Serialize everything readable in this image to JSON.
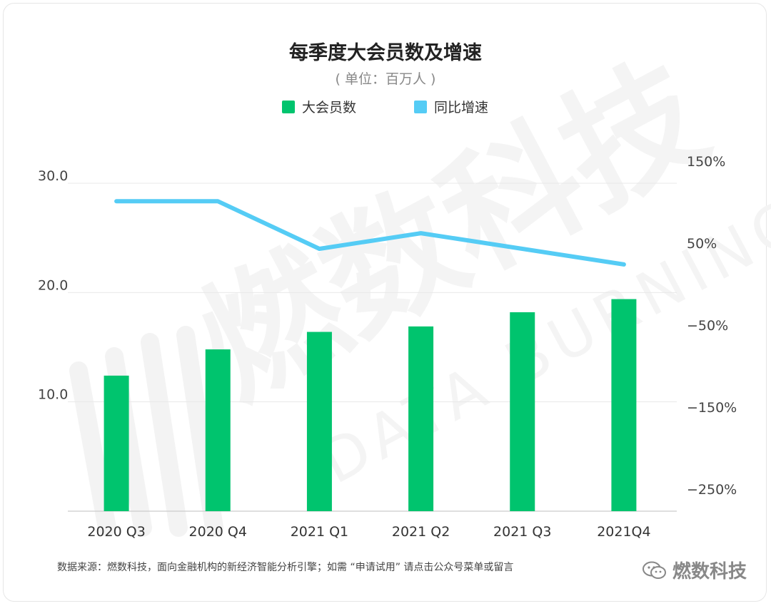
{
  "title": "每季度大会员数及增速",
  "subtitle": "( 单位：百万人 )",
  "legend": [
    {
      "label": "大会员数",
      "color": "#00c46e"
    },
    {
      "label": "同比增速",
      "color": "#55ccf5"
    }
  ],
  "footer": "数据来源：燃数科技，面向金融机构的新经济智能分析引擎；如需 “申请试用” 请点击公众号菜单或留言",
  "brand": "燃数科技",
  "watermark": {
    "text_cn": "燃数科技",
    "text_en": "DATA BURNING"
  },
  "colors": {
    "bar": "#00c46e",
    "line": "#55ccf5",
    "grid": "#e8e8e8",
    "axis": "#cccccc"
  },
  "chart_data": {
    "type": "bar",
    "title": "每季度大会员数及增速",
    "subtitle": "( 单位：百万人 )",
    "categories": [
      "2020 Q3",
      "2020 Q4",
      "2021 Q1",
      "2021 Q2",
      "2021 Q3",
      "2021Q4"
    ],
    "series": [
      {
        "name": "大会员数",
        "type": "bar",
        "axis": "left",
        "values": [
          12.4,
          14.8,
          16.4,
          16.9,
          18.2,
          19.4
        ]
      },
      {
        "name": "同比增速",
        "type": "line",
        "axis": "right",
        "values": [
          128,
          128,
          70,
          89,
          70,
          51
        ]
      }
    ],
    "y_left": {
      "ticks": [
        "10.0",
        "20.0",
        "30.0"
      ],
      "tick_values": [
        10,
        20,
        30
      ],
      "ylim": [
        0,
        30.0
      ]
    },
    "y_right": {
      "ticks": [
        "150%",
        "50%",
        "−50%",
        "−150%",
        "−250%"
      ],
      "tick_values": [
        150,
        50,
        -50,
        -150,
        -250
      ],
      "ylim": [
        -250,
        150
      ]
    },
    "grid": true,
    "legend": "top"
  }
}
